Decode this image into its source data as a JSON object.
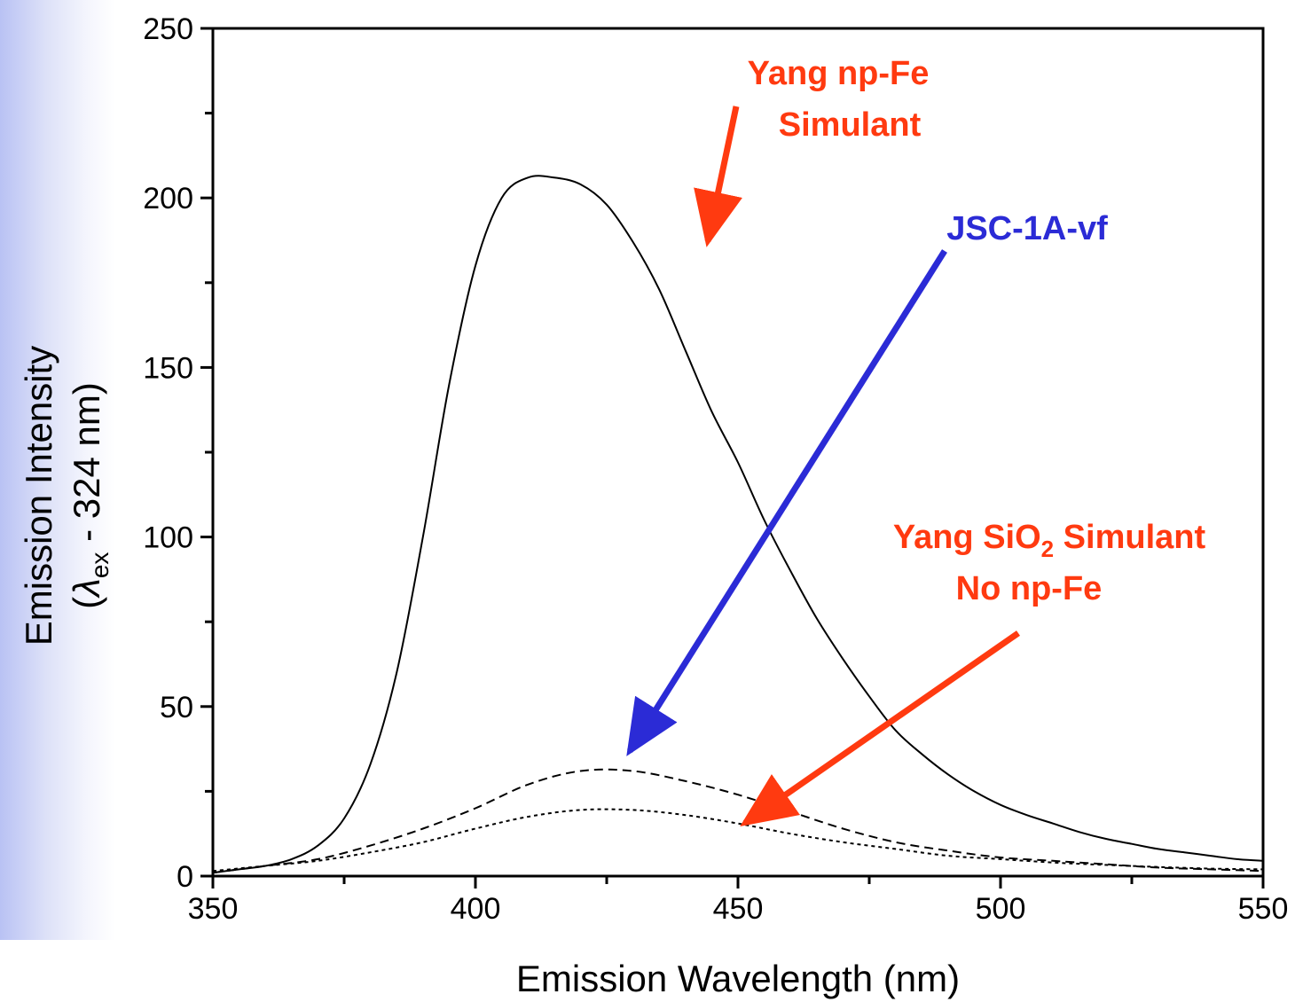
{
  "colors": {
    "annotation_red": "#ff3a10",
    "annotation_blue": "#2b2bd6",
    "line": "#000000",
    "sidebar_gradient": "#b9c2f4"
  },
  "chart_data": {
    "type": "line",
    "xlabel": "Emission Wavelength (nm)",
    "ylabel_line1": "Emission Intensity",
    "ylabel_line2": "(λex - 324 nm)",
    "ylabel_lambda": "λ",
    "ylabel_sub": "ex",
    "ylabel_rest": " - 324 nm)",
    "xlim": [
      350,
      550
    ],
    "ylim": [
      0,
      250
    ],
    "x_major_ticks": [
      350,
      400,
      450,
      500,
      550
    ],
    "x_tick_labels": [
      "350",
      "400",
      "450",
      "500",
      "550"
    ],
    "y_major_ticks": [
      0,
      50,
      100,
      150,
      200,
      250
    ],
    "y_tick_labels": [
      "0",
      "50",
      "100",
      "150",
      "200",
      "250"
    ],
    "grid": false,
    "series": [
      {
        "style": "solid",
        "x": [
          350,
          355,
          360,
          365,
          370,
          375,
          380,
          385,
          390,
          395,
          400,
          405,
          410,
          415,
          420,
          425,
          430,
          435,
          440,
          445,
          450,
          455,
          460,
          465,
          470,
          475,
          480,
          485,
          490,
          495,
          500,
          505,
          510,
          515,
          520,
          525,
          530,
          535,
          540,
          545,
          550
        ],
        "y": [
          1,
          2,
          3,
          5,
          9,
          17,
          33,
          60,
          100,
          145,
          180,
          200,
          206,
          206,
          204,
          198,
          187,
          173,
          155,
          137,
          122,
          105,
          90,
          76,
          64,
          53,
          43,
          36,
          30,
          25,
          21,
          18,
          15.5,
          13,
          11,
          9.5,
          8,
          7,
          6,
          5,
          4.5
        ]
      },
      {
        "style": "dashed",
        "x": [
          350,
          360,
          370,
          380,
          390,
          400,
          410,
          420,
          430,
          440,
          450,
          460,
          470,
          480,
          490,
          500,
          510,
          520,
          530,
          540,
          550
        ],
        "y": [
          1,
          3,
          5,
          9,
          14,
          20,
          27,
          31,
          31,
          28,
          24,
          19,
          14,
          10,
          7.5,
          5.5,
          4.5,
          3.5,
          2.5,
          2,
          1.5
        ]
      },
      {
        "style": "dotted",
        "x": [
          350,
          360,
          370,
          380,
          390,
          400,
          410,
          420,
          430,
          440,
          450,
          460,
          470,
          480,
          490,
          500,
          510,
          520,
          530,
          540,
          550
        ],
        "y": [
          1.5,
          3,
          4.5,
          7,
          10,
          14,
          17.5,
          19.5,
          19.5,
          18,
          15.5,
          12.5,
          10,
          8,
          6,
          5,
          4,
          3.3,
          2.7,
          2.2,
          2
        ]
      }
    ],
    "annotations": [
      {
        "text": [
          "Yang np-Fe",
          "Simulant"
        ],
        "color": "#ff3a10"
      },
      {
        "text": [
          "JSC-1A-vf"
        ],
        "color": "#2b2bd6"
      },
      {
        "text_line1": "Yang SiO",
        "text_sub": "2",
        "text_line1_rest": " Simulant",
        "text_line2": "No np-Fe",
        "color": "#ff3a10"
      }
    ]
  }
}
